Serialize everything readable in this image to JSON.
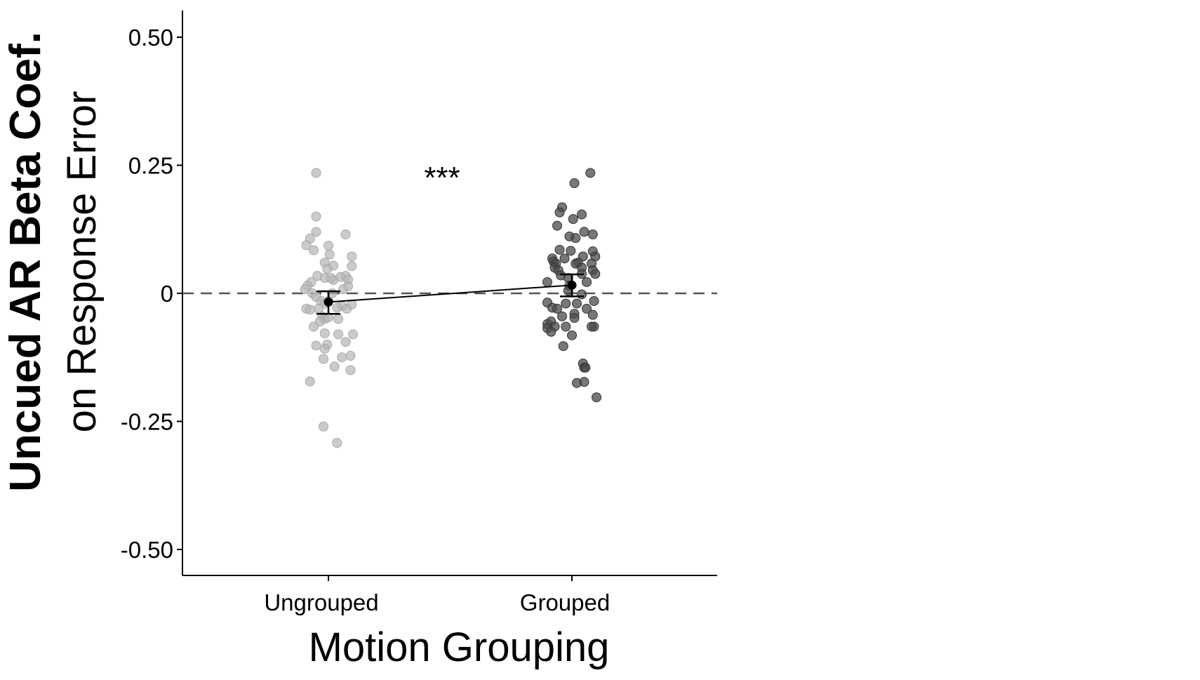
{
  "chart_data": {
    "type": "scatter",
    "xlabel": "Motion Grouping",
    "ylabel_line1": "Uncued AR Beta Coef.",
    "ylabel_line2": "on Response Error",
    "categories": [
      "Ungrouped",
      "Grouped"
    ],
    "ylim": [
      -0.55,
      0.55
    ],
    "yticks": [
      0.5,
      0.25,
      0,
      -0.25,
      -0.5
    ],
    "ytick_labels": [
      "0.50",
      "0.25",
      "0",
      "-0.25",
      "-0.50"
    ],
    "reference_line": 0,
    "significance_label": "***",
    "grid": false,
    "series": [
      {
        "category": "Ungrouped",
        "color": "#b5b5b5",
        "mean": -0.017,
        "se_low": -0.04,
        "se_high": 0.004,
        "points": [
          {
            "offset": -0.1,
            "y": 0.235
          },
          {
            "offset": -0.1,
            "y": 0.15
          },
          {
            "offset": -0.1,
            "y": 0.12
          },
          {
            "offset": -0.15,
            "y": 0.107
          },
          {
            "offset": -0.18,
            "y": 0.094
          },
          {
            "offset": -0.12,
            "y": 0.084
          },
          {
            "offset": 0.0,
            "y": 0.093
          },
          {
            "offset": 0.01,
            "y": 0.076
          },
          {
            "offset": -0.03,
            "y": 0.06
          },
          {
            "offset": 0.04,
            "y": 0.054
          },
          {
            "offset": -0.01,
            "y": 0.048
          },
          {
            "offset": -0.09,
            "y": 0.034
          },
          {
            "offset": -0.03,
            "y": 0.03
          },
          {
            "offset": 0.04,
            "y": 0.026
          },
          {
            "offset": -0.14,
            "y": 0.022
          },
          {
            "offset": -0.17,
            "y": 0.015
          },
          {
            "offset": -0.19,
            "y": 0.008
          },
          {
            "offset": -0.13,
            "y": 0.0
          },
          {
            "offset": -0.1,
            "y": -0.007
          },
          {
            "offset": -0.06,
            "y": -0.015
          },
          {
            "offset": -0.03,
            "y": -0.02
          },
          {
            "offset": -0.18,
            "y": -0.03
          },
          {
            "offset": -0.15,
            "y": -0.032
          },
          {
            "offset": -0.08,
            "y": -0.03
          },
          {
            "offset": -0.05,
            "y": -0.045
          },
          {
            "offset": -0.03,
            "y": -0.05
          },
          {
            "offset": -0.07,
            "y": -0.055
          },
          {
            "offset": -0.12,
            "y": -0.065
          },
          {
            "offset": -0.03,
            "y": -0.078
          },
          {
            "offset": -0.1,
            "y": -0.102
          },
          {
            "offset": -0.01,
            "y": -0.1
          },
          {
            "offset": -0.03,
            "y": -0.108
          },
          {
            "offset": -0.04,
            "y": -0.128
          },
          {
            "offset": 0.05,
            "y": -0.143
          },
          {
            "offset": -0.15,
            "y": -0.172
          },
          {
            "offset": -0.04,
            "y": -0.26
          },
          {
            "offset": 0.07,
            "y": -0.292
          },
          {
            "offset": 0.0,
            "y": -0.047
          },
          {
            "offset": 0.08,
            "y": -0.05
          },
          {
            "offset": 0.03,
            "y": 0.0
          },
          {
            "offset": 0.02,
            "y": 0.03
          },
          {
            "offset": 0.1,
            "y": 0.032
          },
          {
            "offset": 0.14,
            "y": 0.034
          },
          {
            "offset": 0.16,
            "y": 0.027
          },
          {
            "offset": 0.19,
            "y": 0.072
          },
          {
            "offset": 0.19,
            "y": 0.053
          },
          {
            "offset": 0.14,
            "y": 0.115
          },
          {
            "offset": 0.16,
            "y": 0.014
          },
          {
            "offset": 0.12,
            "y": 0.008
          },
          {
            "offset": 0.11,
            "y": -0.025
          },
          {
            "offset": 0.15,
            "y": -0.03
          },
          {
            "offset": 0.19,
            "y": -0.022
          },
          {
            "offset": 0.2,
            "y": -0.08
          },
          {
            "offset": 0.08,
            "y": -0.08
          },
          {
            "offset": 0.14,
            "y": -0.095
          },
          {
            "offset": 0.11,
            "y": -0.125
          },
          {
            "offset": 0.18,
            "y": -0.122
          },
          {
            "offset": 0.18,
            "y": -0.15
          },
          {
            "offset": 0.07,
            "y": -0.028
          },
          {
            "offset": 0.0,
            "y": -0.015
          }
        ]
      },
      {
        "category": "Grouped",
        "color": "#4a4a4a",
        "mean": 0.016,
        "se_low": -0.006,
        "se_high": 0.037,
        "points": [
          {
            "offset": 0.15,
            "y": 0.235
          },
          {
            "offset": 0.02,
            "y": 0.215
          },
          {
            "offset": -0.08,
            "y": 0.168
          },
          {
            "offset": -0.1,
            "y": 0.158
          },
          {
            "offset": 0.08,
            "y": 0.154
          },
          {
            "offset": 0.01,
            "y": 0.145
          },
          {
            "offset": -0.12,
            "y": 0.132
          },
          {
            "offset": 0.1,
            "y": 0.12
          },
          {
            "offset": -0.02,
            "y": 0.111
          },
          {
            "offset": 0.03,
            "y": 0.108
          },
          {
            "offset": 0.17,
            "y": 0.115
          },
          {
            "offset": -0.1,
            "y": 0.085
          },
          {
            "offset": -0.01,
            "y": 0.083
          },
          {
            "offset": 0.17,
            "y": 0.082
          },
          {
            "offset": 0.19,
            "y": 0.072
          },
          {
            "offset": 0.09,
            "y": 0.072
          },
          {
            "offset": -0.16,
            "y": 0.068
          },
          {
            "offset": -0.15,
            "y": 0.062
          },
          {
            "offset": -0.13,
            "y": 0.058
          },
          {
            "offset": -0.06,
            "y": 0.068
          },
          {
            "offset": 0.05,
            "y": 0.06
          },
          {
            "offset": 0.03,
            "y": 0.058
          },
          {
            "offset": 0.08,
            "y": 0.05
          },
          {
            "offset": -0.14,
            "y": 0.05
          },
          {
            "offset": -0.11,
            "y": 0.045
          },
          {
            "offset": 0.16,
            "y": 0.058
          },
          {
            "offset": 0.17,
            "y": 0.045
          },
          {
            "offset": 0.19,
            "y": 0.038
          },
          {
            "offset": -0.09,
            "y": 0.035
          },
          {
            "offset": 0.08,
            "y": 0.038
          },
          {
            "offset": -0.03,
            "y": 0.03
          },
          {
            "offset": 0.12,
            "y": 0.022
          },
          {
            "offset": -0.2,
            "y": 0.022
          },
          {
            "offset": -0.02,
            "y": 0.015
          },
          {
            "offset": -0.03,
            "y": 0.005
          },
          {
            "offset": 0.08,
            "y": -0.002
          },
          {
            "offset": -0.2,
            "y": -0.018
          },
          {
            "offset": -0.16,
            "y": -0.028
          },
          {
            "offset": -0.12,
            "y": -0.03
          },
          {
            "offset": -0.05,
            "y": -0.02
          },
          {
            "offset": 0.04,
            "y": -0.02
          },
          {
            "offset": 0.12,
            "y": -0.03
          },
          {
            "offset": 0.18,
            "y": -0.015
          },
          {
            "offset": 0.02,
            "y": -0.04
          },
          {
            "offset": -0.08,
            "y": -0.045
          },
          {
            "offset": 0.02,
            "y": -0.048
          },
          {
            "offset": 0.17,
            "y": -0.042
          },
          {
            "offset": -0.2,
            "y": -0.06
          },
          {
            "offset": -0.17,
            "y": -0.055
          },
          {
            "offset": -0.14,
            "y": -0.065
          },
          {
            "offset": -0.05,
            "y": -0.065
          },
          {
            "offset": -0.2,
            "y": -0.068
          },
          {
            "offset": -0.17,
            "y": -0.075
          },
          {
            "offset": 0.18,
            "y": -0.065
          },
          {
            "offset": 0.16,
            "y": -0.065
          },
          {
            "offset": 0.0,
            "y": -0.082
          },
          {
            "offset": -0.07,
            "y": -0.103
          },
          {
            "offset": 0.09,
            "y": -0.137
          },
          {
            "offset": 0.1,
            "y": -0.145
          },
          {
            "offset": 0.11,
            "y": -0.145
          },
          {
            "offset": 0.04,
            "y": -0.175
          },
          {
            "offset": 0.1,
            "y": -0.173
          },
          {
            "offset": 0.2,
            "y": -0.203
          }
        ]
      }
    ]
  }
}
